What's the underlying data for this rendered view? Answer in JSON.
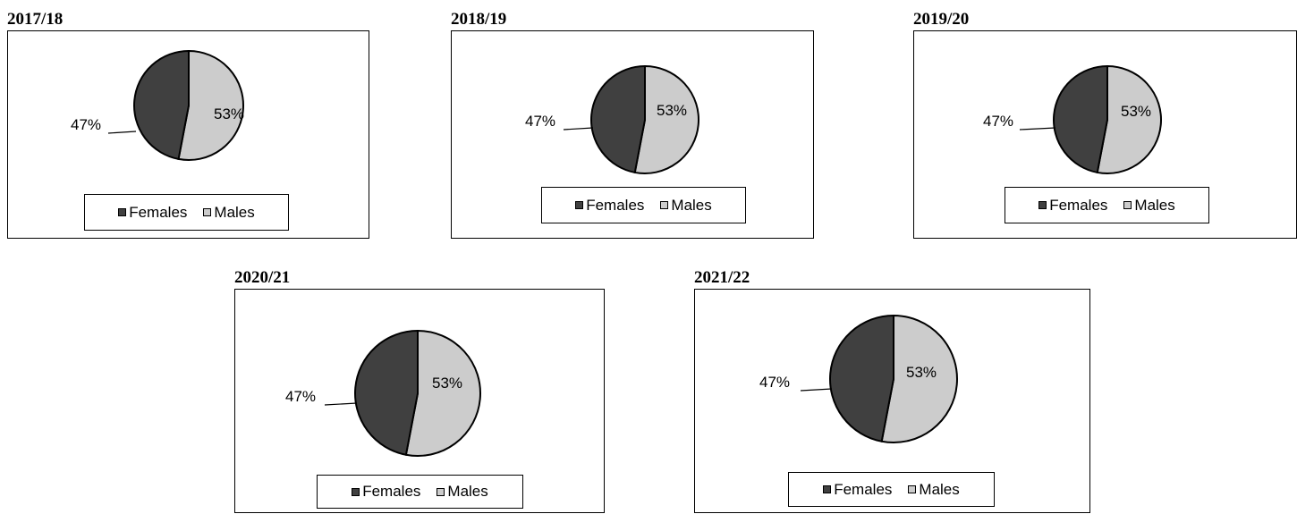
{
  "colors": {
    "females": "#404040",
    "males": "#cccccc",
    "outline": "#000000"
  },
  "chart_data": [
    {
      "type": "pie",
      "title": "2017/18",
      "categories": [
        "Females",
        "Males"
      ],
      "values": [
        47,
        53
      ],
      "labels": [
        "47%",
        "53%"
      ],
      "legend": [
        "Females",
        "Males"
      ],
      "legend_position": "bottom"
    },
    {
      "type": "pie",
      "title": "2018/19",
      "categories": [
        "Females",
        "Males"
      ],
      "values": [
        47,
        53
      ],
      "labels": [
        "47%",
        "53%"
      ],
      "legend": [
        "Females",
        "Males"
      ],
      "legend_position": "bottom"
    },
    {
      "type": "pie",
      "title": "2019/20",
      "categories": [
        "Females",
        "Males"
      ],
      "values": [
        47,
        53
      ],
      "labels": [
        "47%",
        "53%"
      ],
      "legend": [
        "Females",
        "Males"
      ],
      "legend_position": "bottom"
    },
    {
      "type": "pie",
      "title": "2020/21",
      "categories": [
        "Females",
        "Males"
      ],
      "values": [
        47,
        53
      ],
      "labels": [
        "47%",
        "53%"
      ],
      "legend": [
        "Females",
        "Males"
      ],
      "legend_position": "bottom"
    },
    {
      "type": "pie",
      "title": "2021/22",
      "categories": [
        "Females",
        "Males"
      ],
      "values": [
        47,
        53
      ],
      "labels": [
        "47%",
        "53%"
      ],
      "legend": [
        "Females",
        "Males"
      ],
      "legend_position": "bottom"
    }
  ]
}
